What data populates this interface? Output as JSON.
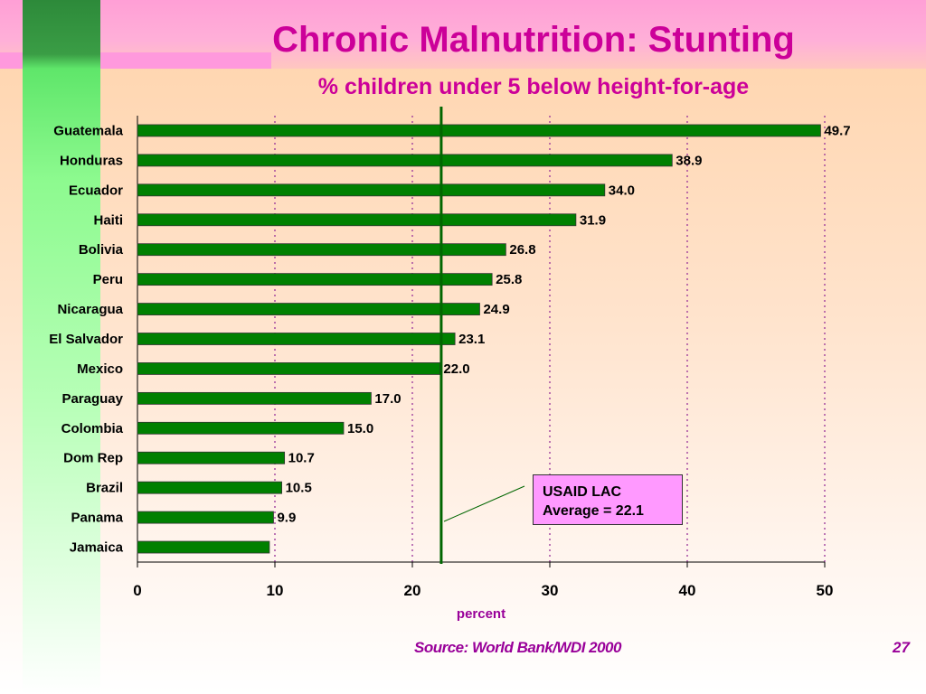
{
  "slide": {
    "title": "Chronic Malnutrition: Stunting",
    "subtitle": "% children under 5 below height-for-age",
    "callout_line1": "USAID LAC",
    "callout_line2": "Average = 22.1",
    "source": "Source: World Bank/WDI 2000",
    "page_number": "27"
  },
  "colors": {
    "bar": "#008000",
    "average_line": "#006600",
    "gridline": "#993399",
    "title": "#cc0099",
    "callout_bg": "#ff99ff"
  },
  "chart_data": {
    "type": "bar",
    "orientation": "horizontal",
    "title": "Chronic Malnutrition: Stunting",
    "subtitle": "% children under 5 below height-for-age",
    "xlabel": "percent",
    "ylabel": "",
    "categories": [
      "Guatemala",
      "Honduras",
      "Ecuador",
      "Haiti",
      "Bolivia",
      "Peru",
      "Nicaragua",
      "El Salvador",
      "Mexico",
      "Paraguay",
      "Colombia",
      "Dom Rep",
      "Brazil",
      "Panama",
      "Jamaica"
    ],
    "values": [
      49.7,
      38.9,
      34.0,
      31.9,
      26.8,
      25.8,
      24.9,
      23.1,
      22.0,
      17.0,
      15.0,
      10.7,
      10.5,
      9.9,
      9.6
    ],
    "value_labels": [
      "49.7",
      "38.9",
      "34.0",
      "31.9",
      "26.8",
      "25.8",
      "24.9",
      "23.1",
      "22.0",
      "17.0",
      "15.0",
      "10.7",
      "10.5",
      "9.9",
      ""
    ],
    "xlim": [
      0,
      50
    ],
    "xticks": [
      0,
      10,
      20,
      30,
      40,
      50
    ],
    "xtick_labels": [
      "0",
      "10",
      "20",
      "30",
      "40",
      "50"
    ],
    "grid": "vertical dotted",
    "reference_line": {
      "label": "USAID LAC Average = 22.1",
      "value": 22.1
    }
  }
}
